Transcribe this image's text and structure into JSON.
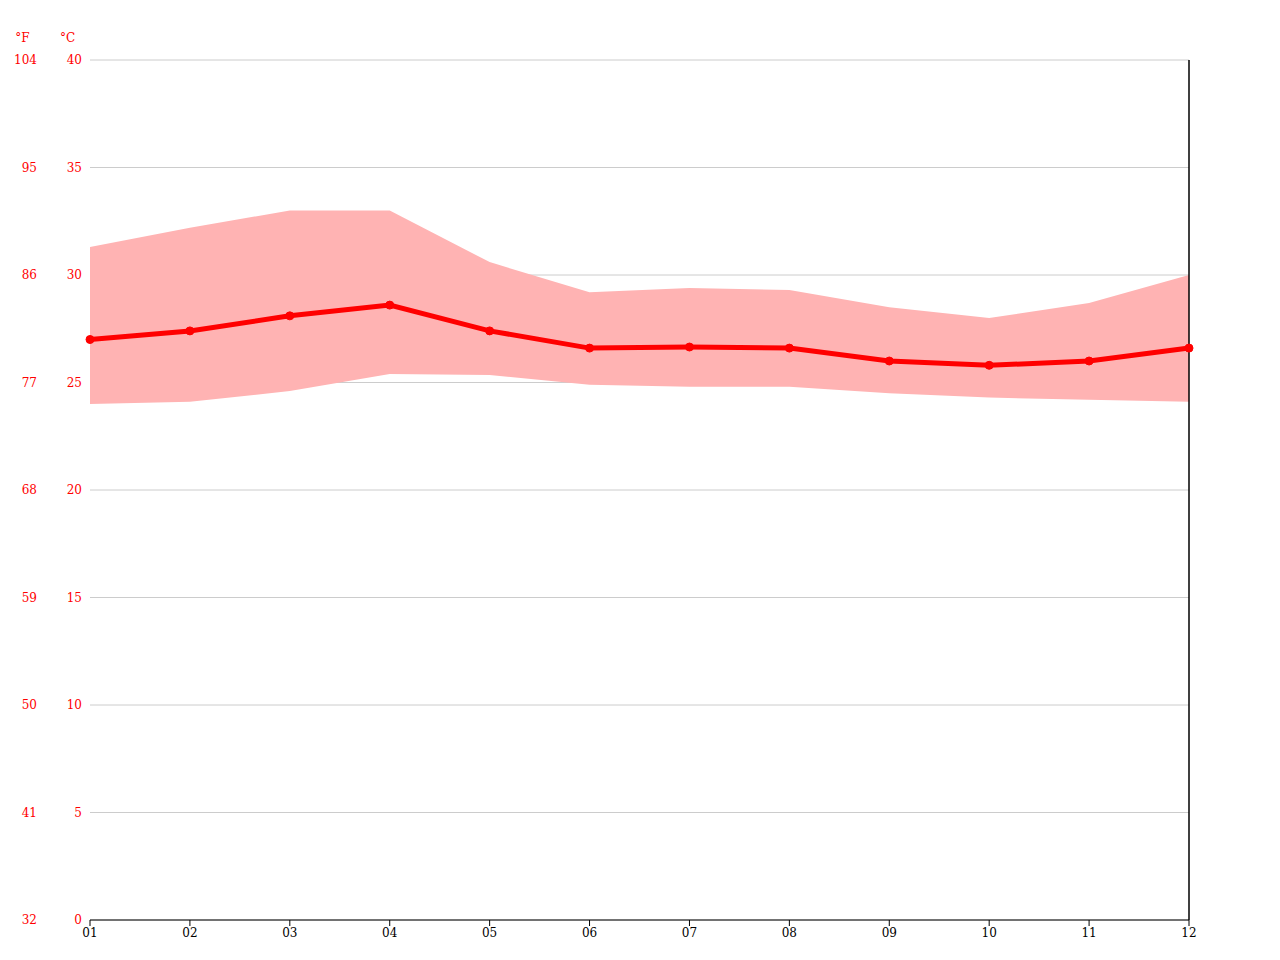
{
  "chart_data": {
    "type": "line",
    "ylabel": "°C",
    "y2label": "°F",
    "categories": [
      "01",
      "02",
      "03",
      "04",
      "05",
      "06",
      "07",
      "08",
      "09",
      "10",
      "11",
      "12"
    ],
    "ylim": [
      0,
      40
    ],
    "yticks": [
      0,
      5,
      10,
      15,
      20,
      25,
      30,
      35,
      40
    ],
    "y2lim": [
      32,
      104
    ],
    "y2ticks": [
      32,
      41,
      50,
      59,
      68,
      77,
      86,
      95,
      104
    ],
    "grid": true,
    "series": [
      {
        "type": "area",
        "color": "#ffb3b3",
        "values": [
          [
            24.0,
            31.3
          ],
          [
            24.1,
            32.2
          ],
          [
            24.6,
            33.0
          ],
          [
            25.4,
            33.0
          ],
          [
            25.35,
            30.6
          ],
          [
            24.9,
            29.2
          ],
          [
            24.8,
            29.4
          ],
          [
            24.8,
            29.3
          ],
          [
            24.5,
            28.5
          ],
          [
            24.3,
            28.0
          ],
          [
            24.2,
            28.7
          ],
          [
            24.1,
            30.0
          ]
        ]
      },
      {
        "type": "line",
        "color": "#ff0000",
        "marker": "circle",
        "values": [
          27.0,
          27.4,
          28.1,
          28.6,
          27.4,
          26.6,
          26.65,
          26.6,
          26.0,
          25.8,
          26.0,
          26.6
        ]
      }
    ]
  }
}
